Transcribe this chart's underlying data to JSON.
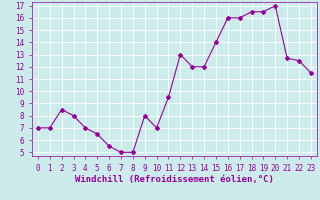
{
  "x": [
    0,
    1,
    2,
    3,
    4,
    5,
    6,
    7,
    8,
    9,
    10,
    11,
    12,
    13,
    14,
    15,
    16,
    17,
    18,
    19,
    20,
    21,
    22,
    23
  ],
  "y": [
    7,
    7,
    8.5,
    8,
    7,
    6.5,
    5.5,
    5,
    5,
    8,
    7,
    9.5,
    13,
    12,
    12,
    14,
    16,
    16,
    16.5,
    16.5,
    17,
    12.7,
    12.5,
    11.5
  ],
  "line_color": "#990099",
  "marker": "D",
  "marker_size": 2,
  "bg_color": "#ccecec",
  "grid_color": "#ffffff",
  "xlabel": "Windchill (Refroidissement éolien,°C)",
  "xlabel_color": "#990099",
  "tick_color": "#990099",
  "ylim": [
    5,
    17
  ],
  "xlim": [
    -0.5,
    23.5
  ],
  "yticks": [
    5,
    6,
    7,
    8,
    9,
    10,
    11,
    12,
    13,
    14,
    15,
    16,
    17
  ],
  "xticks": [
    0,
    1,
    2,
    3,
    4,
    5,
    6,
    7,
    8,
    9,
    10,
    11,
    12,
    13,
    14,
    15,
    16,
    17,
    18,
    19,
    20,
    21,
    22,
    23
  ],
  "axis_fontsize": 5.5,
  "tick_fontsize": 5.5,
  "xlabel_fontsize": 6.5
}
